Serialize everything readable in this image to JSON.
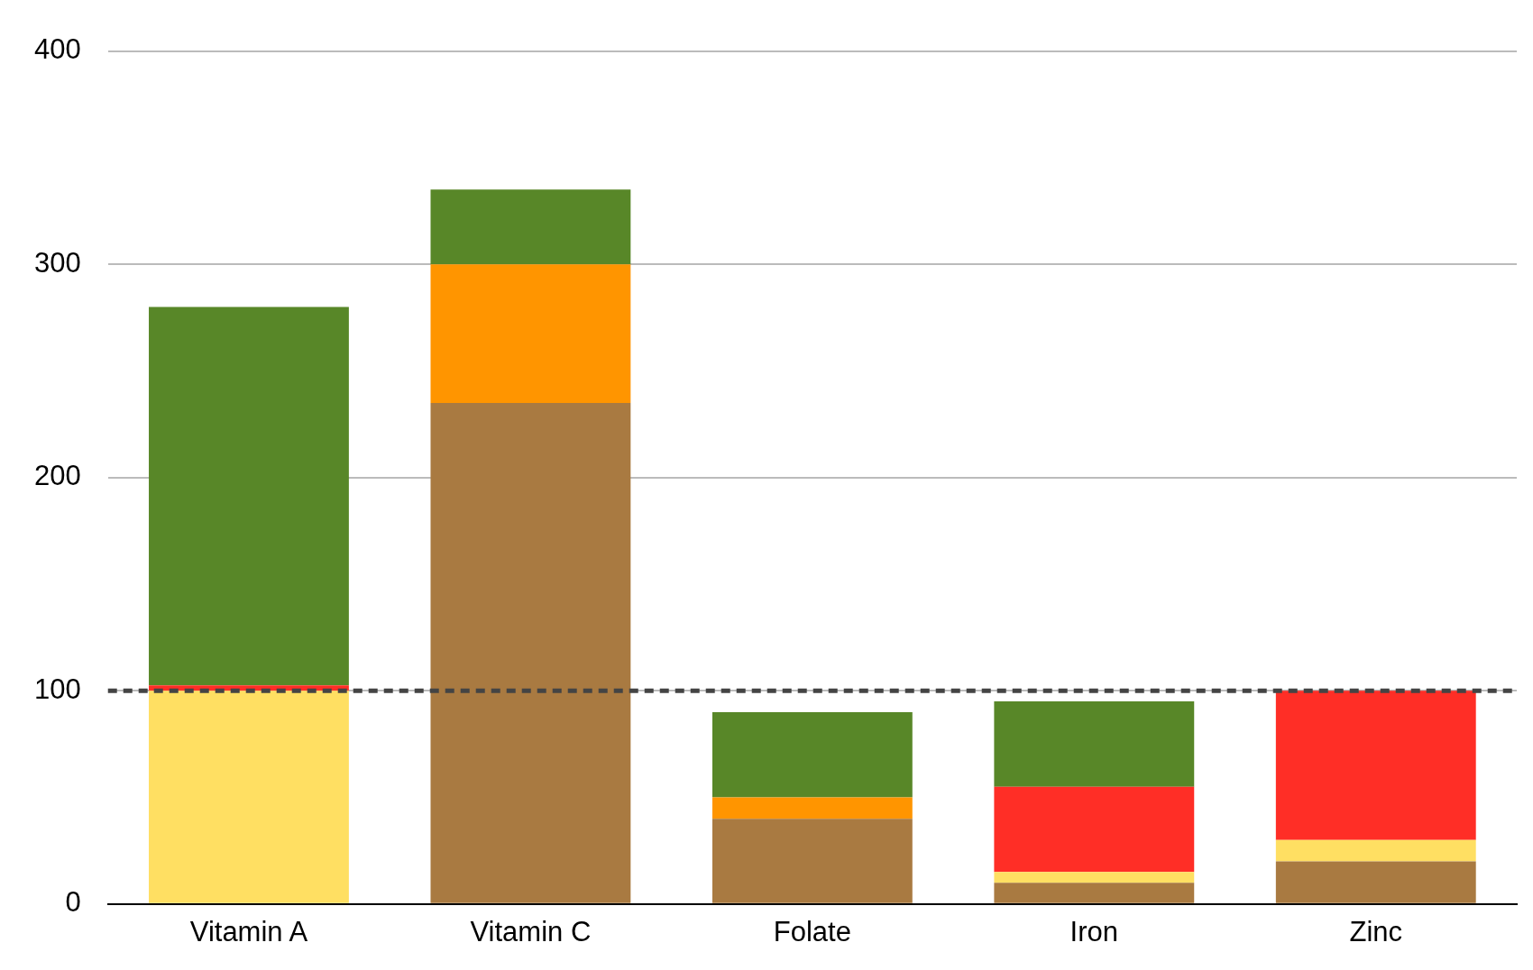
{
  "chart_data": {
    "type": "bar",
    "stacked": true,
    "categories": [
      "Vitamin A",
      "Vitamin C",
      "Folate",
      "Iron",
      "Zinc"
    ],
    "series": [
      {
        "color": "#a97a41",
        "values": [
          0,
          235,
          40,
          10,
          20
        ]
      },
      {
        "color": "#ffdf62",
        "values": [
          100,
          0,
          0,
          5,
          10
        ]
      },
      {
        "color": "#ff2e26",
        "values": [
          2.5,
          0,
          0,
          40,
          70
        ]
      },
      {
        "color": "#ff9500",
        "values": [
          0,
          65,
          10,
          0,
          0
        ]
      },
      {
        "color": "#588728",
        "values": [
          177.5,
          35,
          40,
          40,
          0
        ]
      }
    ],
    "ylim": [
      0,
      400
    ],
    "yticks": [
      0,
      100,
      200,
      300,
      400
    ],
    "grid": "y",
    "legend": false,
    "ref_lines": [
      {
        "axis": "y",
        "value": 100,
        "color": "#444444",
        "line_style": "dashed"
      }
    ]
  }
}
